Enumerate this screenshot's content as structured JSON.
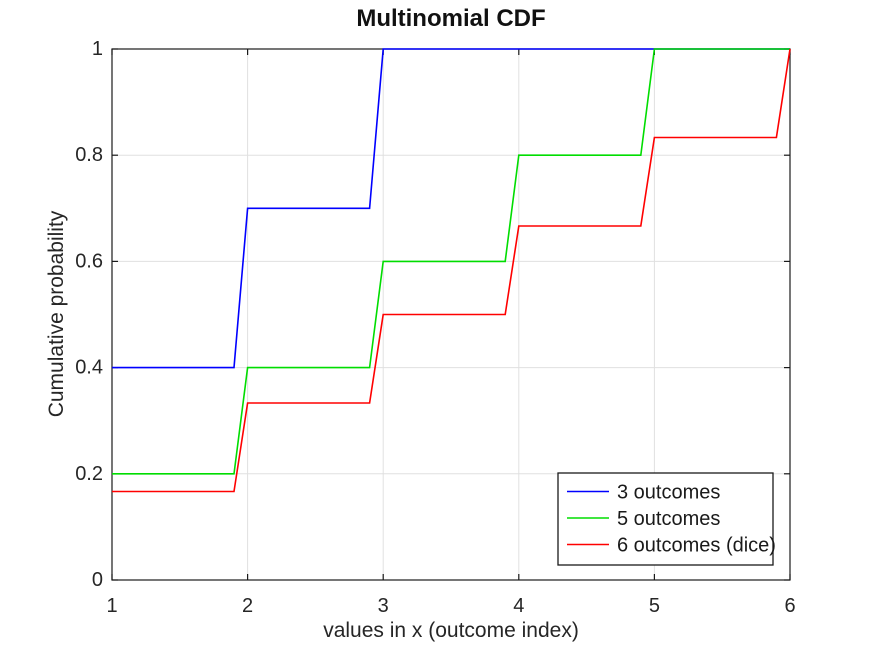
{
  "chart_data": {
    "type": "line",
    "subtype": "step-cdf",
    "title": "Multinomial CDF",
    "xlabel": "values in x (outcome index)",
    "ylabel": "Cumulative probability",
    "xlim": [
      1,
      6
    ],
    "ylim": [
      0,
      1
    ],
    "xtick_values": [
      1,
      2,
      3,
      4,
      5,
      6
    ],
    "xtick_labels": [
      "1",
      "2",
      "3",
      "4",
      "5",
      "6"
    ],
    "ytick_values": [
      0,
      0.2,
      0.4,
      0.6,
      0.8,
      1
    ],
    "ytick_labels": [
      "0",
      "0.2",
      "0.4",
      "0.6",
      "0.8",
      "1"
    ],
    "grid": true,
    "step_rise_width": 0.1,
    "series": [
      {
        "name": "3 outcomes",
        "color": "#0000ff",
        "x": [
          1,
          2,
          3,
          4,
          5,
          6
        ],
        "cdf": [
          0.4,
          0.7,
          1.0,
          1.0,
          1.0,
          1.0
        ]
      },
      {
        "name": "5 outcomes",
        "color": "#00dd00",
        "x": [
          1,
          2,
          3,
          4,
          5,
          6
        ],
        "cdf": [
          0.2,
          0.4,
          0.6,
          0.8,
          1.0,
          1.0
        ]
      },
      {
        "name": "6 outcomes (dice)",
        "color": "#ff0000",
        "x": [
          1,
          2,
          3,
          4,
          5,
          6
        ],
        "cdf": [
          0.1667,
          0.3333,
          0.5,
          0.6667,
          0.8333,
          1.0
        ]
      }
    ],
    "legend": {
      "position": "southeast",
      "entries": [
        "3 outcomes",
        "5 outcomes",
        "6 outcomes (dice)"
      ]
    },
    "colors": {
      "axis": "#1a1a1a",
      "grid": "#e0e0e0",
      "tick_label": "#262626",
      "legend_border": "#1a1a1a",
      "legend_bg": "#ffffff",
      "background": "#ffffff"
    }
  }
}
